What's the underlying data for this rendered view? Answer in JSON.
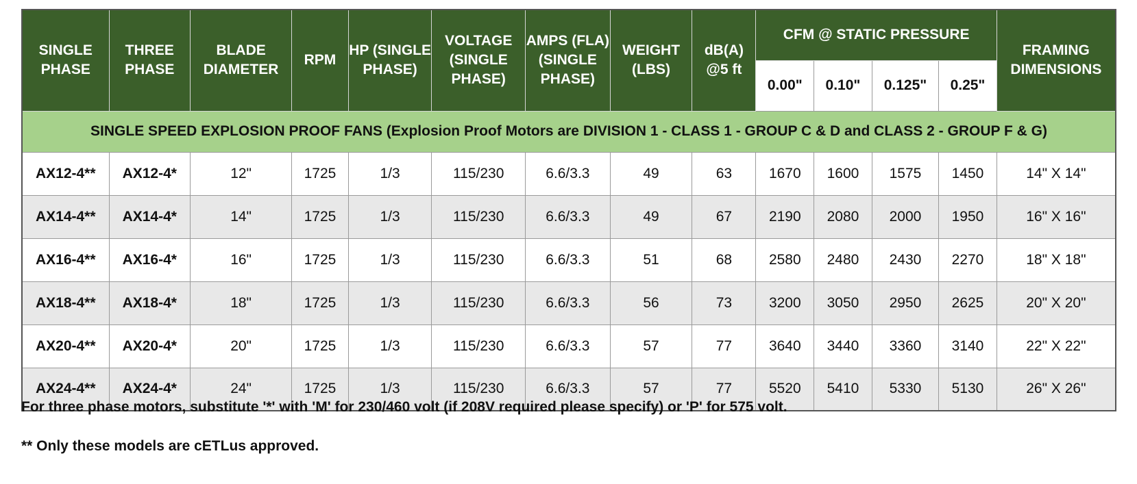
{
  "table": {
    "headers": {
      "single_phase": "SINGLE PHASE",
      "three_phase": "THREE PHASE",
      "blade_diameter": "BLADE DIAMETER",
      "rpm": "RPM",
      "hp": "HP (SINGLE PHASE)",
      "voltage": "VOLTAGE (SINGLE PHASE)",
      "amps": "AMPS (FLA) (SINGLE PHASE)",
      "weight": "WEIGHT (LBS)",
      "db": "dB(A) @5 ft",
      "cfm_group": "CFM @ STATIC PRESSURE",
      "framing": "FRAMING DIMENSIONS",
      "cfm_sub": [
        "0.00\"",
        "0.10\"",
        "0.125\"",
        "0.25\""
      ]
    },
    "section_title": "SINGLE SPEED EXPLOSION PROOF FANS (Explosion Proof Motors are DIVISION 1 - CLASS 1 - GROUP C & D and CLASS 2 - GROUP F & G)",
    "rows": [
      [
        "AX12-4**",
        "AX12-4*",
        "12\"",
        "1725",
        "1/3",
        "115/230",
        "6.6/3.3",
        "49",
        "63",
        "1670",
        "1600",
        "1575",
        "1450",
        "14\" X 14\""
      ],
      [
        "AX14-4**",
        "AX14-4*",
        "14\"",
        "1725",
        "1/3",
        "115/230",
        "6.6/3.3",
        "49",
        "67",
        "2190",
        "2080",
        "2000",
        "1950",
        "16\" X 16\""
      ],
      [
        "AX16-4**",
        "AX16-4*",
        "16\"",
        "1725",
        "1/3",
        "115/230",
        "6.6/3.3",
        "51",
        "68",
        "2580",
        "2480",
        "2430",
        "2270",
        "18\" X 18\""
      ],
      [
        "AX18-4**",
        "AX18-4*",
        "18\"",
        "1725",
        "1/3",
        "115/230",
        "6.6/3.3",
        "56",
        "73",
        "3200",
        "3050",
        "2950",
        "2625",
        "20\" X 20\""
      ],
      [
        "AX20-4**",
        "AX20-4*",
        "20\"",
        "1725",
        "1/3",
        "115/230",
        "6.6/3.3",
        "57",
        "77",
        "3640",
        "3440",
        "3360",
        "3140",
        "22\" X 22\""
      ],
      [
        "AX24-4**",
        "AX24-4*",
        "24\"",
        "1725",
        "1/3",
        "115/230",
        "6.6/3.3",
        "57",
        "77",
        "5520",
        "5410",
        "5330",
        "5130",
        "26\" X 26\""
      ]
    ]
  },
  "notes": {
    "three_phase": "For three phase motors, substitute '*' with 'M' for 230/460 volt (if 208V required please specify) or 'P' for 575 volt.",
    "approval": "** Only these models are cETLus approved."
  },
  "colors": {
    "header_bg": "#3b5f2a",
    "section_bg": "#a6d18b",
    "alt_row_bg": "#e8e8e8"
  }
}
